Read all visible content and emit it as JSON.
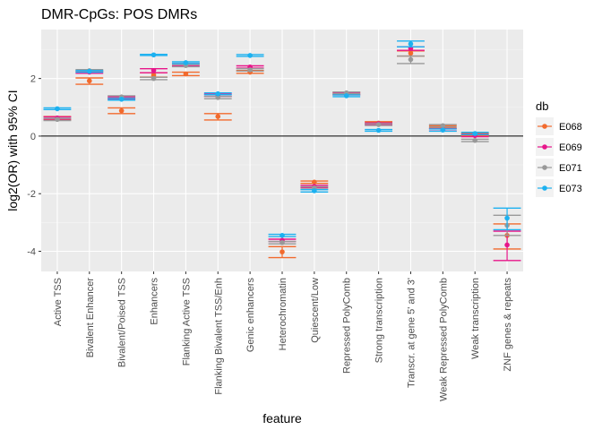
{
  "chart_data": {
    "type": "scatter",
    "title": "DMR-CpGs: POS DMRs",
    "xlabel": "feature",
    "ylabel": "log2(OR) with 95% CI",
    "ylim": [
      -4.7,
      3.7
    ],
    "yticks": [
      -4,
      -2,
      0,
      2
    ],
    "grid": true,
    "hline": 0,
    "legend": {
      "title": "db",
      "position": "right"
    },
    "categories": [
      "Active TSS",
      "Bivalent Enhancer",
      "Bivalent/Poised TSS",
      "Enhancers",
      "Flanking Active TSS",
      "Flanking Bivalent TSS/Enh",
      "Genic enhancers",
      "Heterochromatin",
      "Quiescent/Low",
      "Repressed PolyComb",
      "Strong transcription",
      "Transcr. at gene 5' and 3'",
      "Weak Repressed PolyComb",
      "Weak transcription",
      "ZNF genes & repeats"
    ],
    "series": [
      {
        "name": "E068",
        "color": "#F8766D",
        "draw": "#F26A2D",
        "values": [
          0.62,
          1.92,
          0.88,
          2.12,
          2.16,
          0.68,
          2.22,
          -4.02,
          -1.6,
          1.47,
          0.45,
          2.88,
          0.32,
          0.05,
          -3.45
        ],
        "lower": [
          0.56,
          1.8,
          0.78,
          2.05,
          2.1,
          0.56,
          2.18,
          -4.22,
          -1.64,
          1.44,
          0.42,
          2.78,
          0.28,
          0.01,
          -3.92
        ],
        "upper": [
          0.68,
          2.02,
          0.98,
          2.2,
          2.22,
          0.78,
          2.28,
          -3.84,
          -1.56,
          1.52,
          0.5,
          2.96,
          0.36,
          0.09,
          -3.05
        ]
      },
      {
        "name": "E069",
        "color": "#E7168A",
        "values": [
          0.63,
          2.22,
          1.32,
          2.28,
          2.48,
          1.42,
          2.4,
          -3.62,
          -1.75,
          1.46,
          0.43,
          3.05,
          0.22,
          0.02,
          -3.78
        ],
        "lower": [
          0.59,
          2.18,
          1.28,
          2.2,
          2.44,
          1.38,
          2.36,
          -3.66,
          -1.79,
          1.43,
          0.4,
          2.98,
          0.18,
          -0.02,
          -4.32
        ],
        "upper": [
          0.67,
          2.26,
          1.36,
          2.34,
          2.52,
          1.46,
          2.44,
          -3.58,
          -1.71,
          1.49,
          0.46,
          3.1,
          0.26,
          0.06,
          -3.3
        ]
      },
      {
        "name": "E071",
        "color": "#999999",
        "values": [
          0.58,
          2.27,
          1.36,
          2.0,
          2.45,
          1.34,
          2.3,
          -3.7,
          -1.8,
          1.5,
          0.4,
          2.66,
          0.36,
          -0.15,
          -3.1
        ],
        "lower": [
          0.54,
          2.23,
          1.32,
          1.96,
          2.41,
          1.3,
          2.26,
          -3.74,
          -1.84,
          1.47,
          0.37,
          2.52,
          0.32,
          -0.19,
          -3.45
        ],
        "upper": [
          0.62,
          2.31,
          1.4,
          2.04,
          2.49,
          1.38,
          2.34,
          -3.66,
          -1.76,
          1.53,
          0.43,
          2.78,
          0.4,
          -0.11,
          -2.75
        ]
      },
      {
        "name": "E073",
        "color": "#00BFFF",
        "draw": "#1CB1F0",
        "values": [
          0.95,
          2.25,
          1.28,
          2.82,
          2.55,
          1.47,
          2.8,
          -3.45,
          -1.9,
          1.4,
          0.2,
          3.2,
          0.21,
          0.09,
          -2.85
        ],
        "lower": [
          0.92,
          2.22,
          1.25,
          2.8,
          2.52,
          1.44,
          2.77,
          -3.49,
          -1.94,
          1.37,
          0.17,
          3.1,
          0.17,
          0.05,
          -3.25
        ],
        "upper": [
          0.98,
          2.28,
          1.31,
          2.84,
          2.58,
          1.5,
          2.83,
          -3.41,
          -1.86,
          1.43,
          0.23,
          3.3,
          0.25,
          0.13,
          -2.5
        ]
      }
    ]
  }
}
